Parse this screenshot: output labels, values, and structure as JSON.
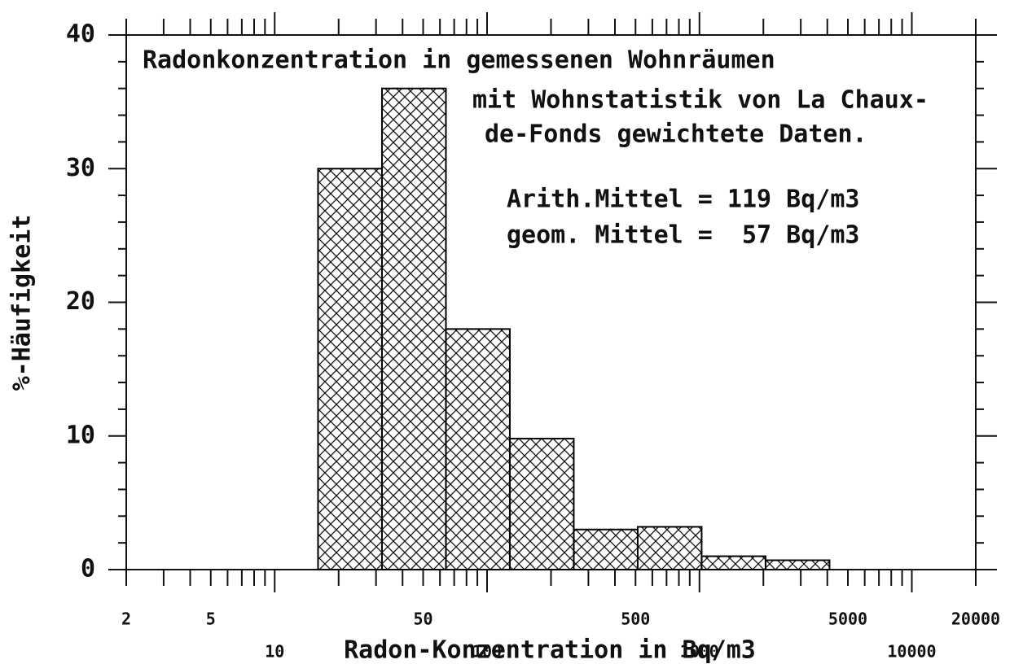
{
  "chart_data": {
    "type": "histogram",
    "title_lines": [
      "Radonkonzentration in gemessenen Wohnräumen",
      "mit Wohnstatistik von La Chaux-",
      "de-Fonds gewichtete Daten."
    ],
    "annotations": [
      "Arith.Mittel = 119 Bq/m3",
      "geom. Mittel =  57 Bq/m3"
    ],
    "xlabel": "Radon-Konzentration in Bq/m3",
    "ylabel": "%-Häufigkeit",
    "bins": [
      16,
      32,
      64,
      128,
      256,
      512,
      1024,
      2048,
      4096
    ],
    "values": [
      30,
      36,
      18,
      9.8,
      3,
      3.2,
      1,
      0.7
    ],
    "xscale": "log",
    "xlim": [
      2,
      20000
    ],
    "xticks": [
      2,
      5,
      10,
      50,
      100,
      500,
      1000,
      5000,
      10000,
      20000
    ],
    "xminor_ticks": [
      3,
      4,
      6,
      7,
      8,
      9,
      20,
      30,
      40,
      60,
      70,
      80,
      90,
      200,
      300,
      400,
      600,
      700,
      800,
      900,
      2000,
      3000,
      4000,
      6000,
      7000,
      8000,
      9000
    ],
    "ylim": [
      0,
      40
    ],
    "yticks": [
      0,
      10,
      20,
      30,
      40
    ],
    "yminor_ticks": [
      2,
      4,
      6,
      8,
      12,
      14,
      16,
      18,
      22,
      24,
      26,
      28,
      32,
      34,
      36,
      38
    ],
    "color": "#000000",
    "grid": false
  }
}
